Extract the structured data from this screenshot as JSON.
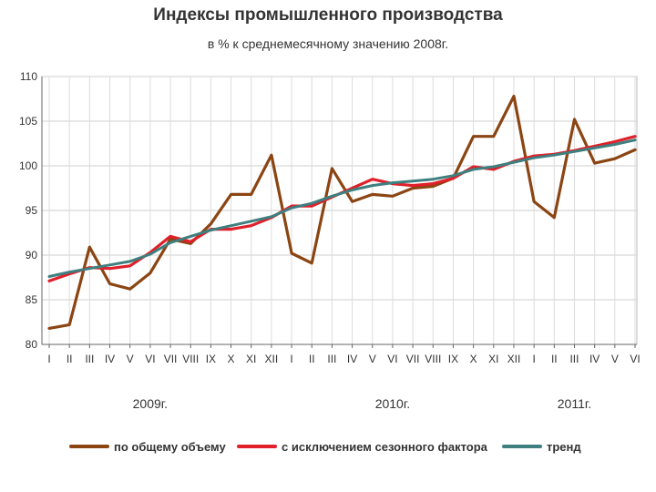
{
  "chart_data": {
    "type": "line",
    "title": "Индексы промышленного производства",
    "subtitle": "в % к среднемесячному значению 2008г.",
    "xlabel": "",
    "ylabel": "",
    "ylim": [
      80,
      110
    ],
    "yticks": [
      "80",
      "85",
      "90",
      "95",
      "100",
      "105",
      "110"
    ],
    "grid": true,
    "legend_position": "bottom",
    "categories": [
      "I",
      "II",
      "III",
      "IV",
      "V",
      "VI",
      "VII",
      "VIII",
      "IX",
      "X",
      "XI",
      "XII",
      "I",
      "II",
      "III",
      "IV",
      "V",
      "VI",
      "VII",
      "VIII",
      "IX",
      "X",
      "XI",
      "XII",
      "I",
      "II",
      "III",
      "IV",
      "V",
      "VI"
    ],
    "year_labels": [
      {
        "label": "2009г.",
        "category_index": 5
      },
      {
        "label": "2010г.",
        "category_index": 17
      },
      {
        "label": "2011г.",
        "category_index": 26
      }
    ],
    "series": [
      {
        "name": "по общему объему",
        "color": "#8B4513",
        "values": [
          81.8,
          82.2,
          90.9,
          86.8,
          86.2,
          88.0,
          91.8,
          91.3,
          93.5,
          96.8,
          96.8,
          101.2,
          90.2,
          89.1,
          99.7,
          96.0,
          96.8,
          96.6,
          97.5,
          97.7,
          98.6,
          103.3,
          103.3,
          107.8,
          96.0,
          94.2,
          105.2,
          100.3,
          100.8,
          101.8
        ]
      },
      {
        "name": "с исключением сезонного фактора",
        "color": "#e0202a",
        "values": [
          87.1,
          87.9,
          88.6,
          88.5,
          88.8,
          90.3,
          92.1,
          91.5,
          92.9,
          92.9,
          93.3,
          94.2,
          95.5,
          95.5,
          96.5,
          97.5,
          98.5,
          98.0,
          97.8,
          98.0,
          98.6,
          99.9,
          99.6,
          100.5,
          101.1,
          101.3,
          101.7,
          102.2,
          102.7,
          103.3
        ]
      },
      {
        "name": "тренд",
        "color": "#3f7f7f",
        "values": [
          87.6,
          88.1,
          88.5,
          88.9,
          89.3,
          90.1,
          91.4,
          92.1,
          92.8,
          93.3,
          93.8,
          94.3,
          95.3,
          95.8,
          96.6,
          97.3,
          97.8,
          98.1,
          98.3,
          98.5,
          98.9,
          99.6,
          99.9,
          100.4,
          100.9,
          101.2,
          101.6,
          102.0,
          102.4,
          102.9
        ]
      }
    ]
  }
}
